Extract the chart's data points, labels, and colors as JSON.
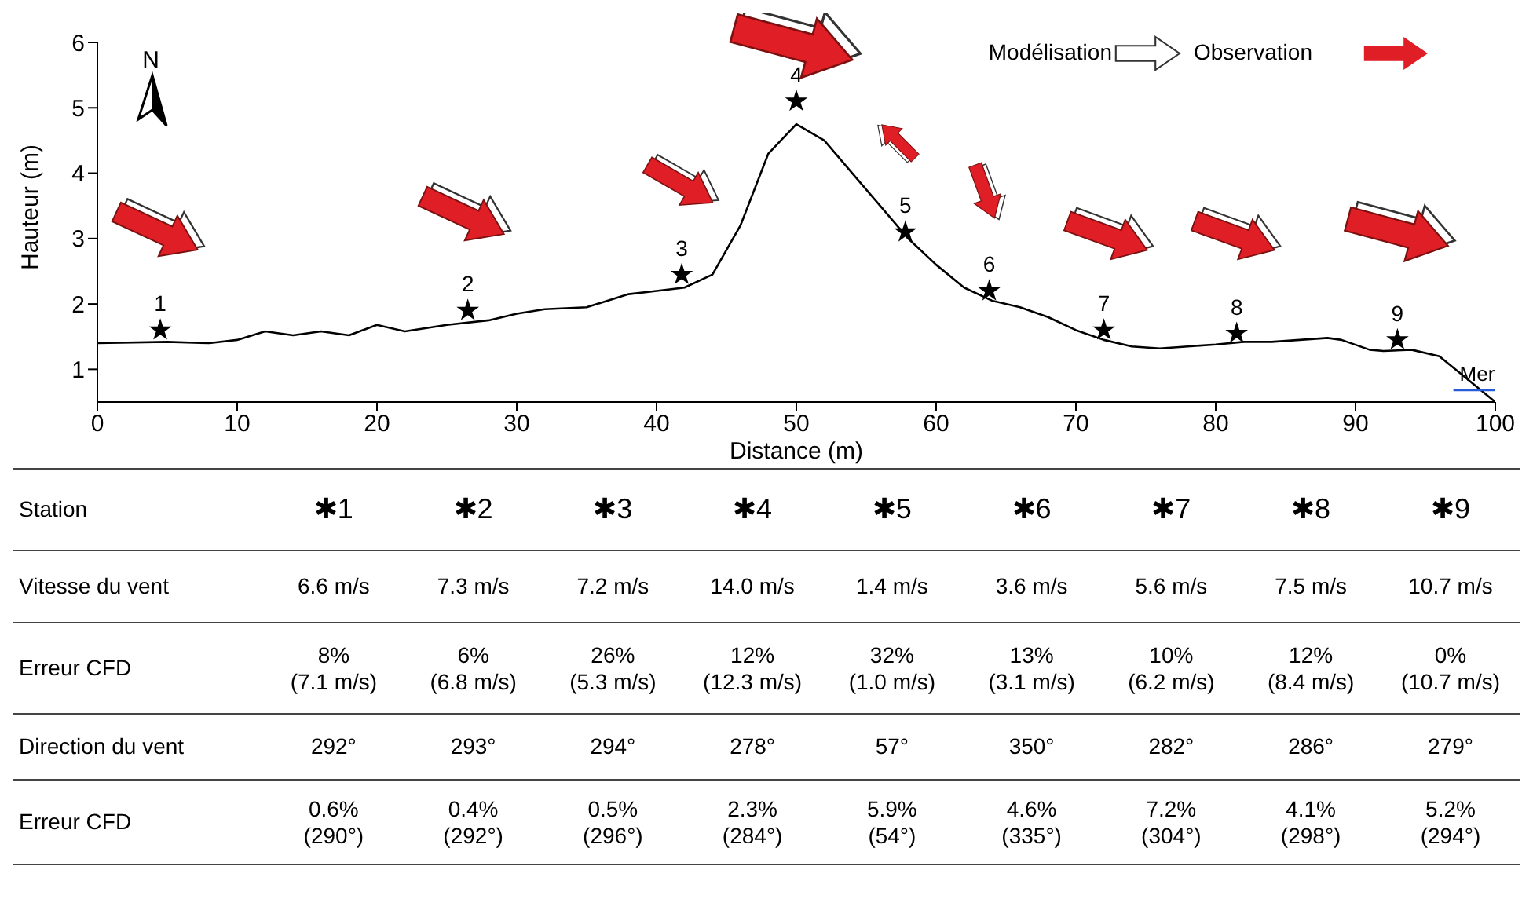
{
  "chart_data": {
    "type": "line",
    "xlabel": "Distance (m)",
    "ylabel": "Hauteur (m)",
    "xlim": [
      0,
      100
    ],
    "xticks": [
      0,
      10,
      20,
      30,
      40,
      50,
      60,
      70,
      80,
      90,
      100
    ],
    "ylim": [
      0.5,
      6
    ],
    "yticks": [
      1,
      2,
      3,
      4,
      5,
      6
    ],
    "grid": false,
    "series": [
      {
        "type": "line",
        "color": "#000000",
        "x": [
          0,
          5,
          8,
          10,
          12,
          14,
          16,
          18,
          20,
          22,
          25,
          28,
          30,
          32,
          35,
          38,
          40,
          42,
          44,
          46,
          48,
          50,
          52,
          54,
          56,
          58,
          60,
          62,
          64,
          66,
          68,
          70,
          72,
          74,
          76,
          78,
          80,
          82,
          84,
          86,
          88,
          89,
          91,
          92,
          94,
          96,
          98,
          100
        ],
        "values": [
          1.4,
          1.42,
          1.4,
          1.45,
          1.58,
          1.52,
          1.58,
          1.52,
          1.68,
          1.58,
          1.68,
          1.75,
          1.85,
          1.92,
          1.95,
          2.15,
          2.2,
          2.25,
          2.45,
          3.2,
          4.3,
          4.75,
          4.5,
          4.0,
          3.5,
          3.0,
          2.6,
          2.25,
          2.05,
          1.95,
          1.8,
          1.6,
          1.45,
          1.35,
          1.32,
          1.35,
          1.38,
          1.42,
          1.42,
          1.45,
          1.48,
          1.45,
          1.3,
          1.28,
          1.3,
          1.2,
          0.85,
          0.5
        ]
      },
      {
        "type": "line",
        "name": "Mer",
        "color": "#2a5bd7",
        "x": [
          97,
          100
        ],
        "values": [
          0.68,
          0.68
        ]
      },
      {
        "type": "scatter",
        "color": "#000000",
        "marker": "star",
        "x": [
          4.5,
          26.5,
          41.8,
          50,
          57.8,
          63.8,
          72,
          81.5,
          93
        ],
        "values": [
          1.6,
          1.9,
          2.45,
          5.1,
          3.1,
          2.2,
          1.6,
          1.55,
          1.45
        ]
      }
    ],
    "annotations": [
      {
        "text": "1",
        "x": 4.5,
        "y": 1.6
      },
      {
        "text": "2",
        "x": 26.5,
        "y": 1.9
      },
      {
        "text": "3",
        "x": 41.8,
        "y": 2.45
      },
      {
        "text": "4",
        "x": 50,
        "y": 5.1
      },
      {
        "text": "5",
        "x": 57.8,
        "y": 3.1
      },
      {
        "text": "6",
        "x": 63.8,
        "y": 2.2
      },
      {
        "text": "7",
        "x": 72,
        "y": 1.6
      },
      {
        "text": "8",
        "x": 81.5,
        "y": 1.55
      },
      {
        "text": "9",
        "x": 93,
        "y": 1.45
      },
      "N",
      "Modélisation",
      "Observation",
      "Station",
      "✱1",
      "✱2",
      "✱3",
      "✱4",
      "✱5",
      "✱6",
      "✱7",
      "✱8",
      "✱9",
      "Vitesse du vent",
      "6.6 m/s",
      "7.3 m/s",
      "7.2 m/s",
      "14.0 m/s",
      "1.4 m/s",
      "3.6 m/s",
      "5.6 m/s",
      "7.5 m/s",
      "10.7 m/s",
      "Erreur CFD",
      "8%\n(7.1 m/s)",
      "6%\n(6.8 m/s)",
      "26%\n(5.3 m/s)",
      "12%\n(12.3 m/s)",
      "32%\n(1.0 m/s)",
      "13%\n(3.1 m/s)",
      "10%\n(6.2 m/s)",
      "12%\n(8.4 m/s)",
      "0%\n(10.7 m/s)",
      "Direction du vent",
      "292°",
      "293°",
      "294°",
      "278°",
      "57°",
      "350°",
      "282°",
      "286°",
      "279°",
      "Erreur CFD",
      "0.6%\n(290°)",
      "0.4%\n(292°)",
      "0.5%\n(296°)",
      "2.3%\n(284°)",
      "5.9%\n(54°)",
      "4.6%\n(335°)",
      "7.2%\n(304°)",
      "4.1%\n(298°)",
      "5.2%\n(294°)"
    ]
  }
}
